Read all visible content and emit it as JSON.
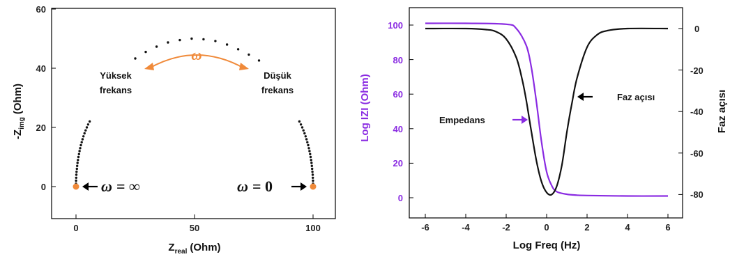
{
  "chart_data": [
    {
      "type": "scatter",
      "title": "",
      "xlabel": "Z",
      "xlabel_sub": "real",
      "xlabel_unit": "(Ohm)",
      "ylabel": "-Z",
      "ylabel_sub": "img",
      "ylabel_unit": "(Ohm)",
      "xlim": [
        -10,
        110
      ],
      "ylim": [
        -10,
        60
      ],
      "xticks": [
        0,
        50,
        100
      ],
      "yticks": [
        0,
        20,
        40,
        60
      ],
      "series": [
        {
          "marker": "dot",
          "color": "#111111",
          "points": [
            [
              0.0,
              0.0
            ],
            [
              0.01,
              1.0
            ],
            [
              0.04,
              2.0
            ],
            [
              0.09,
              3.0
            ],
            [
              0.16,
              4.0
            ],
            [
              0.25,
              5.0
            ],
            [
              0.37,
              6.0
            ],
            [
              0.5,
              7.0
            ],
            [
              0.65,
              8.0
            ],
            [
              0.83,
              9.0
            ],
            [
              1.03,
              10.0
            ],
            [
              1.25,
              11.0
            ],
            [
              1.5,
              12.0
            ],
            [
              1.77,
              13.0
            ],
            [
              2.07,
              14.0
            ],
            [
              2.4,
              15.0
            ],
            [
              2.76,
              16.0
            ],
            [
              3.15,
              17.0
            ],
            [
              3.58,
              18.0
            ],
            [
              4.05,
              19.0
            ],
            [
              4.57,
              20.0
            ],
            [
              5.13,
              21.0
            ],
            [
              5.75,
              22.0
            ],
            [
              25.0,
              43.3
            ],
            [
              29.4,
              45.5
            ],
            [
              34.0,
              47.3
            ],
            [
              38.8,
              48.7
            ],
            [
              43.8,
              49.5
            ],
            [
              48.8,
              50.0
            ],
            [
              53.8,
              49.8
            ],
            [
              58.8,
              49.2
            ],
            [
              63.7,
              48.0
            ],
            [
              68.4,
              46.4
            ],
            [
              72.9,
              44.6
            ],
            [
              77.2,
              42.6
            ],
            [
              94.25,
              22.0
            ],
            [
              94.87,
              21.0
            ],
            [
              95.43,
              20.0
            ],
            [
              95.95,
              19.0
            ],
            [
              96.42,
              18.0
            ],
            [
              96.85,
              17.0
            ],
            [
              97.24,
              16.0
            ],
            [
              97.6,
              15.0
            ],
            [
              97.93,
              14.0
            ],
            [
              98.23,
              13.0
            ],
            [
              98.5,
              12.0
            ],
            [
              98.75,
              11.0
            ],
            [
              98.97,
              10.0
            ],
            [
              99.17,
              9.0
            ],
            [
              99.35,
              8.0
            ],
            [
              99.5,
              7.0
            ],
            [
              99.63,
              6.0
            ],
            [
              99.75,
              5.0
            ],
            [
              99.84,
              4.0
            ],
            [
              99.91,
              3.0
            ],
            [
              99.96,
              2.0
            ],
            [
              99.99,
              1.0
            ],
            [
              100.0,
              0.0
            ]
          ]
        }
      ],
      "endpoints": [
        {
          "x": 0,
          "y": 0,
          "color": "#f08a3a"
        },
        {
          "x": 100,
          "y": 0,
          "color": "#f08a3a"
        }
      ],
      "annotations": {
        "high_freq_line1": "Yüksek",
        "high_freq_line2": "frekans",
        "low_freq_line1": "Düşük",
        "low_freq_line2": "frekans",
        "omega_arc": "ω",
        "omega_inf_symbol": "ω",
        "omega_inf_rest": "= ∞",
        "omega_zero_symbol": "ω",
        "omega_zero_rest": "= 0",
        "arc_color": "#f08a3a"
      }
    },
    {
      "type": "line",
      "title": "",
      "xlabel": "Log Freq (Hz)",
      "ylabel_left": "Log IZI (Ohm)",
      "ylabel_right": "Faz açısı",
      "xlim": [
        -6.9,
        7.0
      ],
      "ylim_left": [
        -10,
        110
      ],
      "ylim_right": [
        -93.5,
        13
      ],
      "xticks": [
        -6,
        -4,
        -2,
        0,
        2,
        4,
        6
      ],
      "yticks_left": [
        0,
        20,
        40,
        60,
        80,
        100
      ],
      "yticks_right": [
        0,
        -20,
        -40,
        -60,
        -80
      ],
      "left_axis_color": "#8a2be2",
      "right_axis_color": "#111111",
      "series": [
        {
          "name": "Empedans",
          "axis": "left",
          "color": "#8a2be2",
          "x": [
            -6,
            -4,
            -2,
            -1.5,
            -1,
            -0.75,
            -0.5,
            -0.25,
            0,
            0.25,
            0.5,
            1,
            1.5,
            2,
            4,
            6
          ],
          "y": [
            101,
            101,
            100.5,
            98,
            88,
            75,
            55,
            32,
            15,
            7,
            3.5,
            2,
            1.5,
            1.3,
            1,
            1
          ]
        },
        {
          "name": "Faz açısı",
          "axis": "right",
          "color": "#111111",
          "x": [
            -6,
            -4,
            -3,
            -2.5,
            -2,
            -1.5,
            -1.2,
            -1,
            -0.75,
            -0.5,
            -0.25,
            0,
            0.25,
            0.5,
            0.75,
            1,
            1.25,
            1.5,
            2,
            2.5,
            3,
            4,
            6
          ],
          "y": [
            0,
            0,
            -0.5,
            -1.5,
            -5,
            -14,
            -25,
            -35,
            -50,
            -64,
            -74,
            -79,
            -80,
            -76,
            -66,
            -50,
            -36,
            -24,
            -9,
            -3,
            -1,
            0,
            0
          ]
        }
      ],
      "annotations": {
        "impedance_label": "Empedans",
        "phase_label": "Faz açısı"
      }
    }
  ]
}
